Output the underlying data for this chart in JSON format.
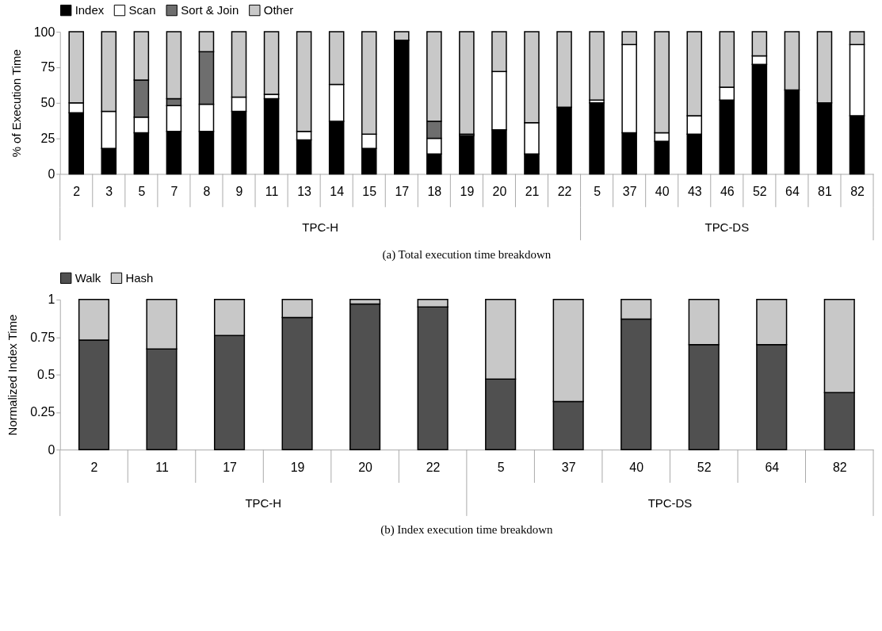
{
  "chart_data": [
    {
      "type": "bar",
      "stacked": true,
      "title": "(a) Total execution time breakdown",
      "ylabel": "% of Execution Time",
      "legend": "top",
      "grid": false,
      "categories": [
        "2",
        "3",
        "5",
        "7",
        "8",
        "9",
        "11",
        "13",
        "14",
        "15",
        "17",
        "18",
        "19",
        "20",
        "21",
        "22",
        "5",
        "37",
        "40",
        "43",
        "46",
        "52",
        "64",
        "81",
        "82"
      ],
      "ylim": [
        0,
        100
      ],
      "yticks": [
        0,
        25,
        50,
        75,
        100
      ],
      "annotations": [
        "TPC-H",
        "TPC-DS"
      ],
      "series": [
        {
          "name": "Index",
          "color": "#000000",
          "values": [
            43,
            18,
            29,
            30,
            30,
            44,
            53,
            24,
            37,
            18,
            94,
            14,
            27,
            31,
            14,
            47,
            50,
            29,
            23,
            28,
            52,
            77,
            59,
            50,
            41
          ]
        },
        {
          "name": "Scan",
          "color": "#ffffff",
          "values": [
            7,
            26,
            11,
            18,
            19,
            10,
            3,
            6,
            26,
            10,
            null,
            11,
            1,
            41,
            22,
            null,
            2,
            62,
            6,
            13,
            9,
            6,
            null,
            null,
            50
          ]
        },
        {
          "name": "Sort & Join",
          "color": "#6e6e6e",
          "values": [
            null,
            null,
            26,
            5,
            37,
            null,
            null,
            null,
            null,
            null,
            null,
            12,
            null,
            null,
            null,
            null,
            null,
            null,
            null,
            null,
            null,
            null,
            null,
            null,
            null
          ]
        },
        {
          "name": "Other",
          "color": "#c8c8c8",
          "values": [
            50,
            56,
            34,
            47,
            14,
            46,
            44,
            70,
            37,
            72,
            6,
            63,
            72,
            28,
            64,
            53,
            48,
            9,
            71,
            59,
            39,
            17,
            41,
            50,
            9
          ]
        }
      ]
    },
    {
      "type": "bar",
      "stacked": true,
      "title": "(b) Index execution time breakdown",
      "ylabel": "Normalized Index Time",
      "legend": "top",
      "grid": false,
      "categories": [
        "2",
        "11",
        "17",
        "19",
        "20",
        "22",
        "5",
        "37",
        "40",
        "52",
        "64",
        "82"
      ],
      "ylim": [
        0,
        1
      ],
      "yticks": [
        0,
        0.25,
        0.5,
        0.75,
        1
      ],
      "annotations": [
        "TPC-H",
        "TPC-DS"
      ],
      "series": [
        {
          "name": "Walk",
          "color": "#505050",
          "values": [
            0.73,
            0.67,
            0.76,
            0.88,
            0.97,
            0.95,
            0.47,
            0.32,
            0.87,
            0.7,
            0.7,
            0.38
          ]
        },
        {
          "name": "Hash",
          "color": "#c8c8c8",
          "values": [
            0.27,
            0.33,
            0.24,
            0.12,
            0.03,
            0.05,
            0.53,
            0.68,
            0.13,
            0.3,
            0.3,
            0.62
          ]
        }
      ]
    }
  ]
}
